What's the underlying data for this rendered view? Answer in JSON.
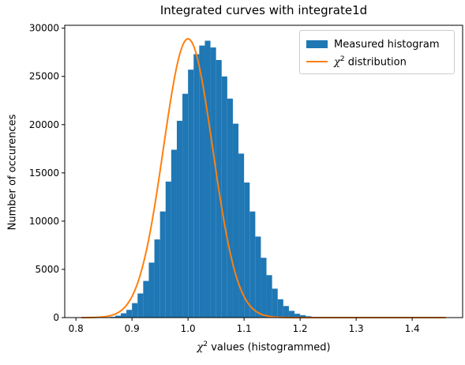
{
  "chart_data": {
    "type": "bar",
    "title": "Integrated curves with integrate1d",
    "xlabel_main": "values (histogrammed)",
    "ylabel": "Number of occurences",
    "chi_symbol": "χ",
    "superscript": "2",
    "xlim": [
      0.78,
      1.49
    ],
    "ylim": [
      0,
      30300
    ],
    "x_ticks": [
      "0.8",
      "0.9",
      "1.0",
      "1.1",
      "1.2",
      "1.3",
      "1.4"
    ],
    "y_ticks": [
      "0",
      "5000",
      "10000",
      "15000",
      "20000",
      "25000",
      "30000"
    ],
    "grid": false,
    "legend_position": "top-right",
    "series": [
      {
        "name": "Measured histogram",
        "kind": "histogram",
        "color": "#1f77b4",
        "bin_start": 0.81,
        "bin_width": 0.01,
        "values": [
          0,
          0,
          0,
          0,
          20,
          80,
          200,
          450,
          800,
          1500,
          2500,
          3800,
          5700,
          8100,
          11000,
          14100,
          17400,
          20400,
          23200,
          25700,
          27300,
          28200,
          28700,
          28000,
          26700,
          25000,
          22700,
          20100,
          17000,
          14000,
          11000,
          8400,
          6200,
          4400,
          3000,
          1900,
          1200,
          700,
          400,
          250,
          140,
          80,
          40,
          20,
          10,
          5,
          0,
          0,
          0,
          0,
          0,
          0,
          0,
          0,
          0,
          0,
          0,
          0,
          0,
          0,
          0,
          0,
          0,
          0,
          0
        ]
      },
      {
        "name": "distribution",
        "kind": "line",
        "color": "#ff7f0e",
        "mean": 1.0,
        "sigma": 0.044,
        "peak": 28900,
        "x_range": [
          0.81,
          1.46
        ]
      }
    ]
  }
}
